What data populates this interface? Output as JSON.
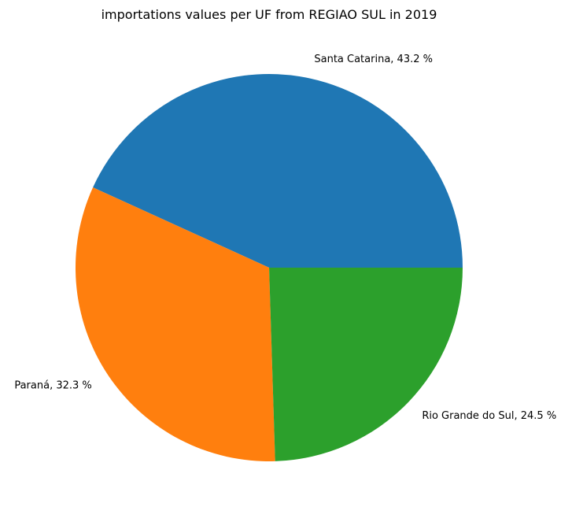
{
  "chart_data": {
    "type": "pie",
    "title": "importations values per UF from REGIAO SUL in 2019",
    "slices": [
      {
        "label": "Santa Catarina",
        "value": 43.2,
        "label_text": "Santa Catarina, 43.2 %",
        "color": "#1f77b4"
      },
      {
        "label": "Paraná",
        "value": 32.3,
        "label_text": "Paraná, 32.3 %",
        "color": "#ff7f0e"
      },
      {
        "label": "Rio Grande do Sul",
        "value": 24.5,
        "label_text": "Rio Grande do Sul, 24.5 %",
        "color": "#2ca02c"
      }
    ],
    "start_angle_deg": 0,
    "direction": "counterclockwise"
  }
}
